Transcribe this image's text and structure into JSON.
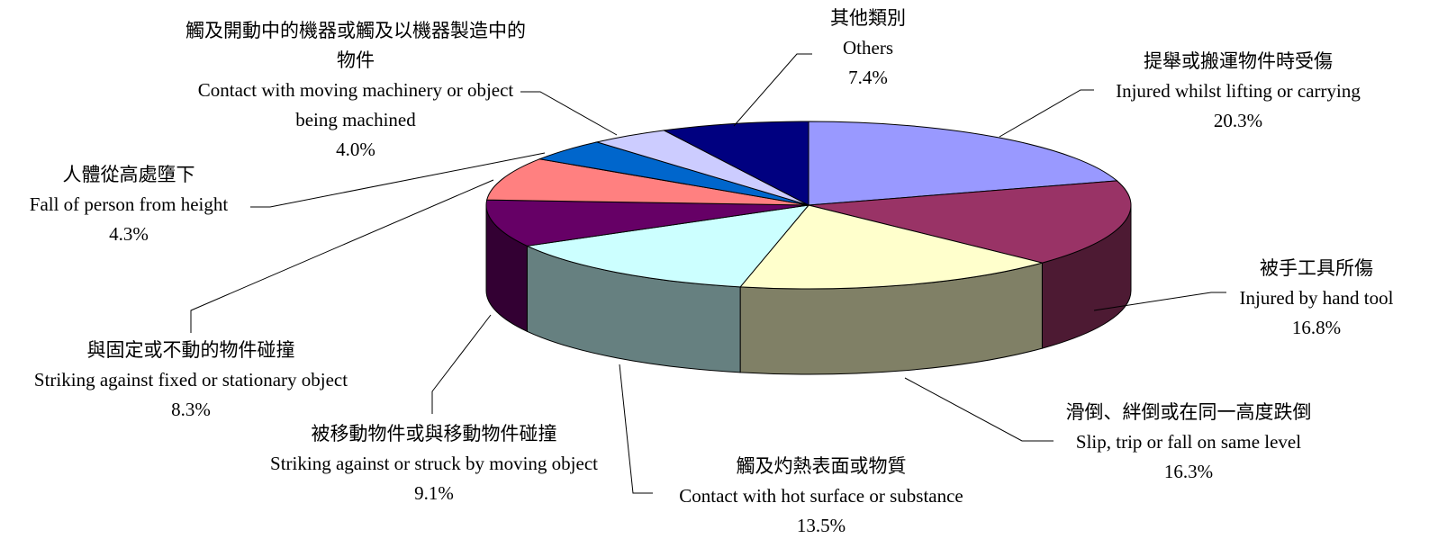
{
  "chart_data": {
    "type": "pie",
    "categories_zh": [
      "提舉或搬運物件時受傷",
      "被手工具所傷",
      "滑倒、絆倒或在同一高度跌倒",
      "觸及灼熱表面或物質",
      "被移動物件或與移動物件碰撞",
      "與固定或不動的物件碰撞",
      "人體從高處墮下",
      "觸及開動中的機器或觸及以機器製造中的物件",
      "其他類別"
    ],
    "categories": [
      "Injured whilst lifting or carrying",
      "Injured by hand tool",
      "Slip, trip or fall on same level",
      "Contact with hot surface or substance",
      "Striking against or struck by moving object",
      "Striking against fixed or stationary object",
      "Fall of person from height",
      "Contact with moving machinery or object being machined",
      "Others"
    ],
    "values": [
      20.3,
      16.8,
      16.3,
      13.5,
      9.1,
      8.3,
      4.3,
      4.0,
      7.4
    ],
    "value_labels": [
      "20.3%",
      "16.8%",
      "16.3%",
      "13.5%",
      "9.1%",
      "8.3%",
      "4.3%",
      "4.0%",
      "7.4%"
    ],
    "colors": [
      "#9999ff",
      "#993366",
      "#ffffcc",
      "#ccffff",
      "#660066",
      "#ff8080",
      "#0066cc",
      "#ccccff",
      "#000080"
    ]
  }
}
